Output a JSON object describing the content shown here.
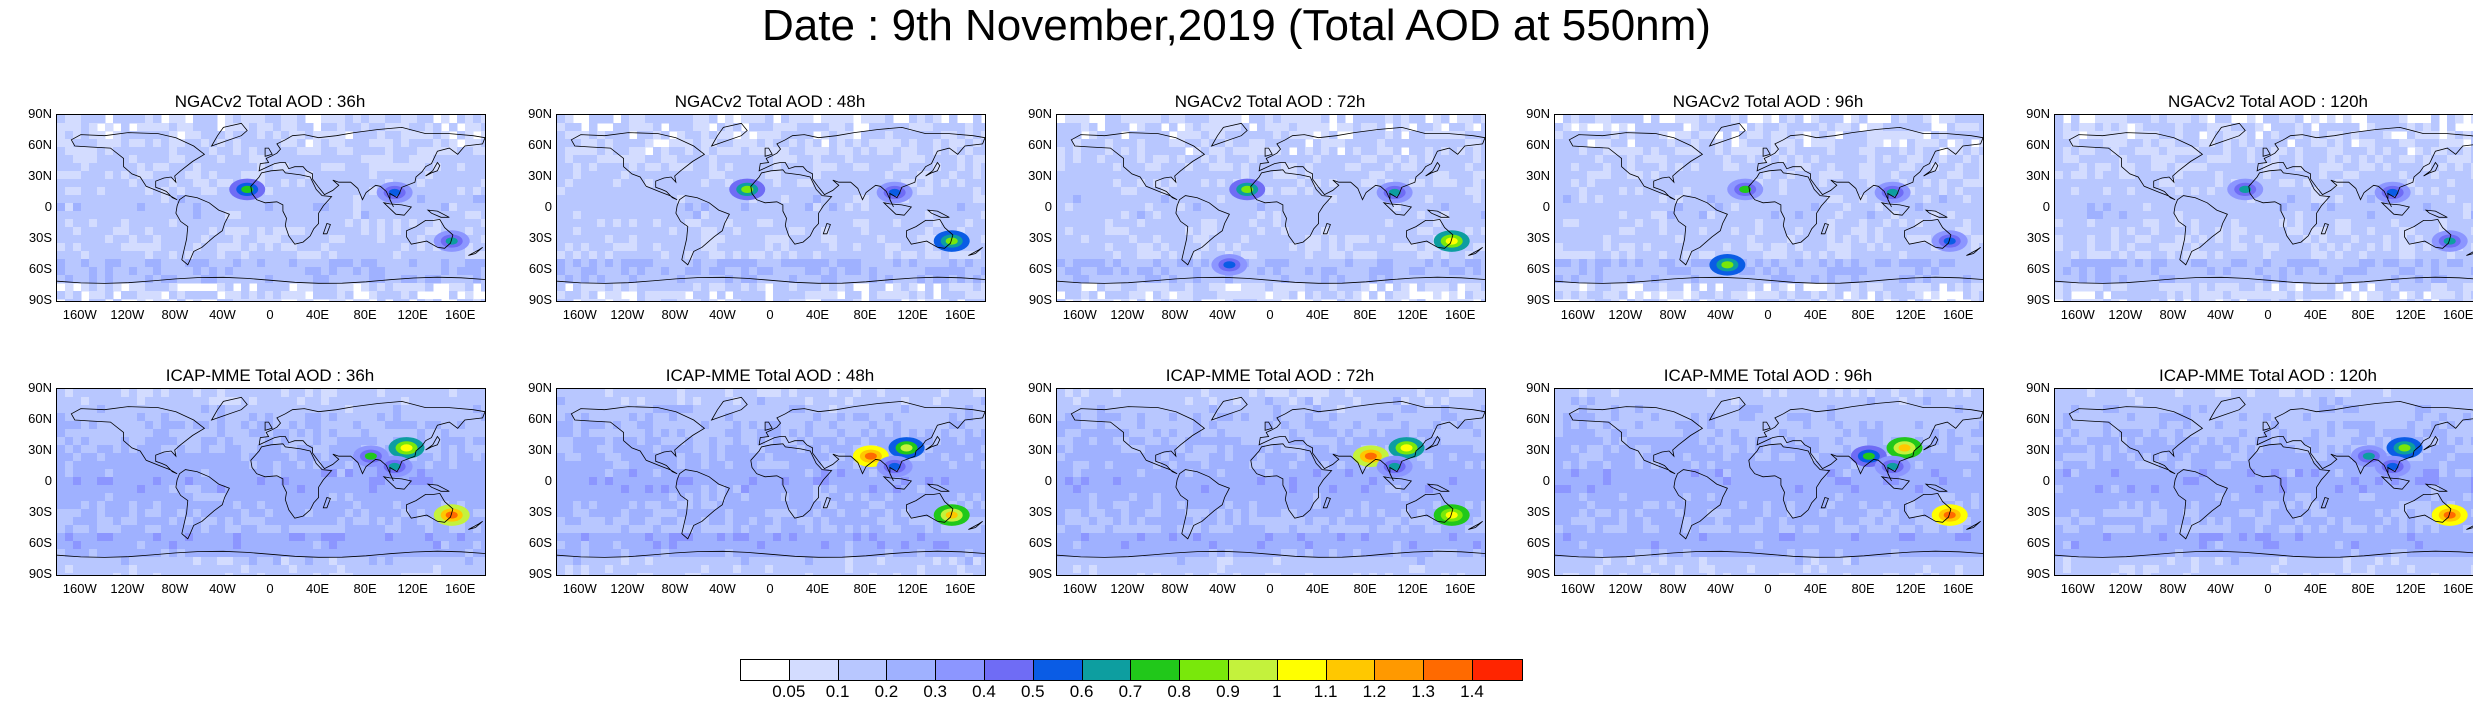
{
  "title": "Date : 9th November,2019 (Total AOD at 550nm)",
  "panels": [
    {
      "title": "NGACv2 Total AOD : 36h",
      "hotspots": [
        [
          "desert",
          0.75
        ],
        [
          "seasia",
          0.55
        ],
        [
          "eaus",
          0.6
        ]
      ]
    },
    {
      "title": "NGACv2 Total AOD : 48h",
      "hotspots": [
        [
          "desert",
          0.8
        ],
        [
          "seasia",
          0.55
        ],
        [
          "eaus",
          0.85
        ]
      ]
    },
    {
      "title": "NGACv2 Total AOD : 72h",
      "hotspots": [
        [
          "desert",
          0.8
        ],
        [
          "seasia",
          0.6
        ],
        [
          "eaus",
          1.0
        ],
        [
          "satl",
          0.5
        ]
      ]
    },
    {
      "title": "NGACv2 Total AOD : 96h",
      "hotspots": [
        [
          "desert",
          0.7
        ],
        [
          "seasia",
          0.6
        ],
        [
          "eaus",
          0.55
        ],
        [
          "satl",
          0.85
        ]
      ]
    },
    {
      "title": "NGACv2 Total AOD : 120h",
      "hotspots": [
        [
          "desert",
          0.6
        ],
        [
          "seasia",
          0.55
        ],
        [
          "eaus",
          0.6
        ]
      ]
    },
    {
      "title": "ICAP-MME Total AOD : 36h",
      "hotspots": [
        [
          "china",
          1.0
        ],
        [
          "india",
          0.7
        ],
        [
          "eaus",
          1.3
        ],
        [
          "seasia",
          0.6
        ]
      ]
    },
    {
      "title": "ICAP-MME Total AOD : 48h",
      "hotspots": [
        [
          "china",
          0.9
        ],
        [
          "india",
          1.35
        ],
        [
          "eaus",
          1.1
        ],
        [
          "seasia",
          0.55
        ]
      ]
    },
    {
      "title": "ICAP-MME Total AOD : 72h",
      "hotspots": [
        [
          "china",
          1.0
        ],
        [
          "india",
          1.3
        ],
        [
          "eaus",
          1.05
        ],
        [
          "seasia",
          0.6
        ]
      ]
    },
    {
      "title": "ICAP-MME Total AOD : 96h",
      "hotspots": [
        [
          "china",
          1.1
        ],
        [
          "india",
          0.75
        ],
        [
          "eaus",
          1.35
        ],
        [
          "seasia",
          0.65
        ]
      ]
    },
    {
      "title": "ICAP-MME Total AOD : 120h",
      "hotspots": [
        [
          "china",
          0.85
        ],
        [
          "india",
          0.65
        ],
        [
          "eaus",
          1.35
        ],
        [
          "seasia",
          0.55
        ]
      ]
    }
  ],
  "lat_ticks": [
    "90N",
    "60N",
    "30N",
    "0",
    "30S",
    "60S",
    "90S"
  ],
  "lon_ticks": [
    "160W",
    "120W",
    "80W",
    "40W",
    "0",
    "40E",
    "80E",
    "120E",
    "160E"
  ],
  "colorbar": {
    "colors": [
      "#ffffff",
      "#d3dcff",
      "#b8c7ff",
      "#9fb1ff",
      "#8c96ff",
      "#6f6cf5",
      "#0a5ce5",
      "#0d9ea0",
      "#21c81a",
      "#79e80b",
      "#c4f23c",
      "#ffff00",
      "#ffc800",
      "#ff9900",
      "#ff6a00",
      "#ff2500"
    ],
    "labels": [
      "0.05",
      "0.1",
      "0.2",
      "0.3",
      "0.4",
      "0.5",
      "0.6",
      "0.7",
      "0.8",
      "0.9",
      "1",
      "1.1",
      "1.2",
      "1.3",
      "1.4"
    ]
  }
}
